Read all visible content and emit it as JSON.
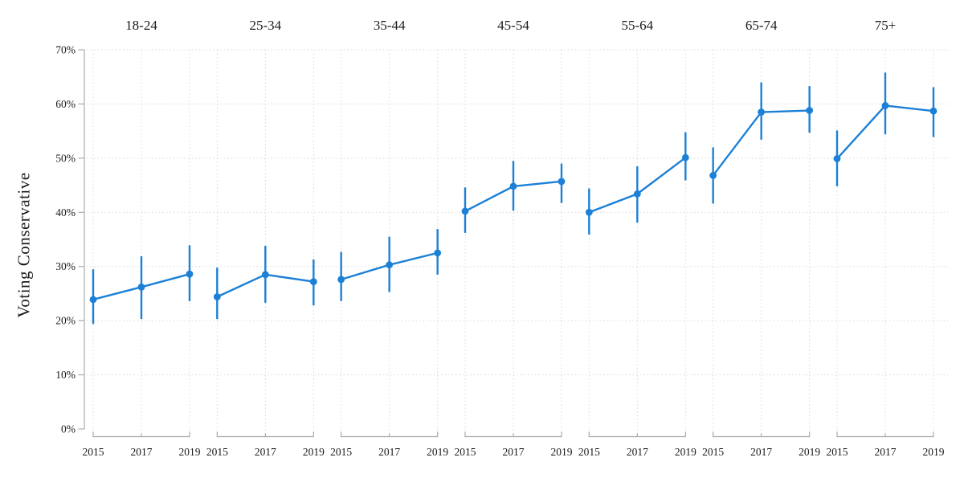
{
  "chart_data": {
    "type": "line",
    "title": "",
    "ylabel": "Voting Conservative",
    "xlabel": "",
    "x": [
      2015,
      2017,
      2019
    ],
    "x_tick_labels": [
      "2015",
      "2017",
      "2019"
    ],
    "ylim": [
      0,
      70
    ],
    "y_ticks": [
      0,
      10,
      20,
      30,
      40,
      50,
      60,
      70
    ],
    "y_tick_labels": [
      "0%",
      "10%",
      "20%",
      "30%",
      "40%",
      "50%",
      "60%",
      "70%"
    ],
    "grid": true,
    "legend": false,
    "error_bars": true,
    "facets": [
      {
        "label": "18-24",
        "values": [
          23.9,
          26.2,
          28.6
        ],
        "ci_low": [
          19.4,
          20.3,
          23.6
        ],
        "ci_high": [
          29.5,
          31.9,
          33.9
        ]
      },
      {
        "label": "25-34",
        "values": [
          24.4,
          28.5,
          27.2
        ],
        "ci_low": [
          20.3,
          23.3,
          22.8
        ],
        "ci_high": [
          29.8,
          33.8,
          31.3
        ]
      },
      {
        "label": "35-44",
        "values": [
          27.6,
          30.3,
          32.5
        ],
        "ci_low": [
          23.6,
          25.3,
          28.5
        ],
        "ci_high": [
          32.7,
          35.5,
          36.9
        ]
      },
      {
        "label": "45-54",
        "values": [
          40.2,
          44.8,
          45.7
        ],
        "ci_low": [
          36.2,
          40.3,
          41.7
        ],
        "ci_high": [
          44.6,
          49.5,
          49.0
        ]
      },
      {
        "label": "55-64",
        "values": [
          40.0,
          43.4,
          50.1
        ],
        "ci_low": [
          35.9,
          38.1,
          45.9
        ],
        "ci_high": [
          44.4,
          48.5,
          54.8
        ]
      },
      {
        "label": "65-74",
        "values": [
          46.8,
          58.5,
          58.8
        ],
        "ci_low": [
          41.6,
          53.4,
          54.7
        ],
        "ci_high": [
          52.0,
          64.0,
          63.3
        ]
      },
      {
        "label": "75+",
        "values": [
          49.9,
          59.7,
          58.7
        ],
        "ci_low": [
          44.8,
          54.4,
          53.9
        ],
        "ci_high": [
          55.1,
          65.8,
          63.1
        ]
      }
    ],
    "colors": {
      "series": "#1b80d6",
      "grid": "#d9d9d9",
      "axis": "#ababab",
      "text": "#1a1a1a"
    }
  }
}
